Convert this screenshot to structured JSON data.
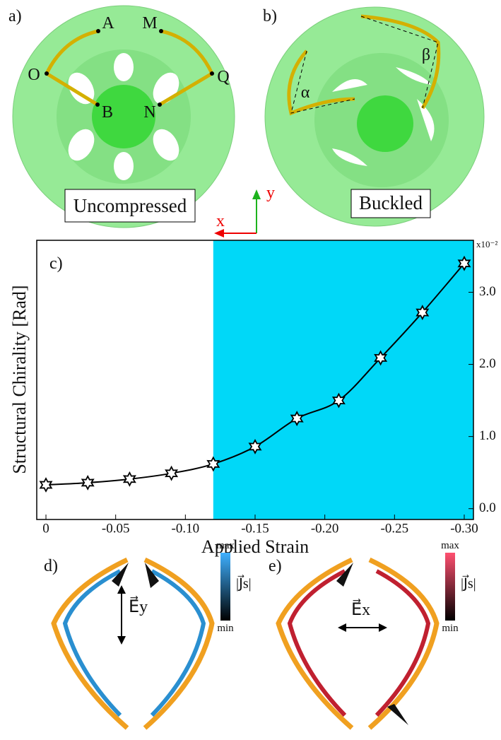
{
  "panel_a": {
    "label": "a)",
    "points": [
      "A",
      "M",
      "O",
      "Q",
      "B",
      "N"
    ],
    "caption": "Uncompressed"
  },
  "panel_b": {
    "label": "b)",
    "angles": [
      "α",
      "β"
    ],
    "caption": "Buckled"
  },
  "axes_icon": {
    "x": "x",
    "y": "y"
  },
  "panel_d": {
    "label": "d)",
    "max": "max",
    "min": "min",
    "colorbar_label": "|J⃗s|",
    "field": "E⃗y"
  },
  "panel_e": {
    "label": "e)",
    "max": "max",
    "min": "min",
    "colorbar_label": "|J⃗s|",
    "field": "E⃗x"
  },
  "chart_data": {
    "type": "line",
    "panel_label": "c)",
    "x_label": "Applied Strain",
    "y_label": "Structural Chirality [Rad]",
    "y_multiplier": "x10⁻²",
    "x": [
      0,
      -0.03,
      -0.06,
      -0.09,
      -0.12,
      -0.15,
      -0.18,
      -0.21,
      -0.24,
      -0.27,
      -0.3
    ],
    "series": [
      {
        "values": [
          0.33,
          0.36,
          0.41,
          0.49,
          0.62,
          0.86,
          1.25,
          1.5,
          2.09,
          2.72,
          3.4
        ],
        "color": "#000000"
      }
    ],
    "xlim": [
      0.0066,
      -0.3066
    ],
    "ylim": [
      -0.15,
      3.72
    ],
    "xticks": [
      0,
      -0.05,
      {
        "value": -0.1,
        "label": "-0.10"
      },
      -0.15,
      {
        "value": -0.2,
        "label": "-0.20"
      },
      -0.25,
      {
        "value": -0.3,
        "label": "-0.30"
      }
    ],
    "yticks": [
      {
        "value": 0,
        "label": "0.0"
      },
      {
        "value": 1,
        "label": "1.0"
      },
      {
        "value": 2,
        "label": "2.0"
      },
      {
        "value": 3,
        "label": "3.0"
      }
    ],
    "highlight_xrange": [
      -0.12,
      -0.3066
    ],
    "highlight_color": "#00d8f8",
    "y_axis_side": "right"
  }
}
